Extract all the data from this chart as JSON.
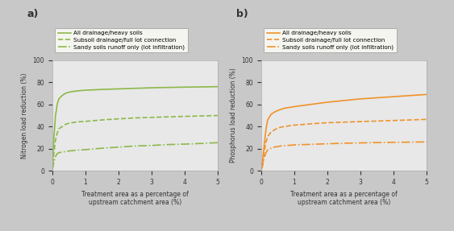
{
  "green_color": "#8db84a",
  "orange_color": "#f0922a",
  "background": "#c8c8c8",
  "panel_bg": "#e8e8e8",
  "xlabel": "Treatment area as a percentage of\nupstream catchment area (%)",
  "ylabel_a": "Nitrogen load reduction (%)",
  "ylabel_b": "Phosphorus load reduction (%)",
  "xlim": [
    0,
    5
  ],
  "ylim": [
    0,
    100
  ],
  "xticks": [
    0,
    1,
    2,
    3,
    4,
    5
  ],
  "yticks": [
    0,
    20,
    40,
    60,
    80,
    100
  ],
  "legend_labels": [
    "All drainage/heavy soils",
    "Subsoil drainage/full lot connection",
    "Sandy soils runoff only (lot infiltration)"
  ],
  "panel_labels": [
    "a)",
    "b)"
  ],
  "nitrogen": {
    "solid_x": [
      0,
      0.05,
      0.1,
      0.15,
      0.2,
      0.3,
      0.4,
      0.5,
      0.6,
      0.7,
      0.8,
      0.9,
      1.0,
      1.5,
      2.0,
      2.5,
      3.0,
      3.5,
      4.0,
      4.5,
      5.0
    ],
    "solid_y": [
      0,
      30,
      50,
      60,
      65,
      68,
      70,
      71,
      71.5,
      72,
      72.3,
      72.6,
      72.8,
      73.5,
      74.0,
      74.5,
      75.0,
      75.3,
      75.6,
      75.8,
      76.0
    ],
    "dashed_x": [
      0,
      0.05,
      0.1,
      0.15,
      0.2,
      0.3,
      0.4,
      0.5,
      0.6,
      0.7,
      0.8,
      0.9,
      1.0,
      1.5,
      2.0,
      2.5,
      3.0,
      3.5,
      4.0,
      4.5,
      5.0
    ],
    "dashed_y": [
      0,
      16,
      28,
      34,
      38,
      40,
      42,
      43,
      43.5,
      44,
      44.3,
      44.5,
      44.7,
      46,
      47,
      47.8,
      48.3,
      48.8,
      49.2,
      49.6,
      50.0
    ],
    "dashdot_x": [
      0,
      0.05,
      0.1,
      0.15,
      0.2,
      0.3,
      0.4,
      0.5,
      0.6,
      0.7,
      0.8,
      0.9,
      1.0,
      1.5,
      2.0,
      2.5,
      3.0,
      3.5,
      4.0,
      4.5,
      5.0
    ],
    "dashdot_y": [
      0,
      8,
      13,
      15.5,
      16.5,
      17,
      17.5,
      18,
      18.3,
      18.6,
      18.8,
      19.0,
      19.2,
      20.5,
      21.5,
      22.5,
      23.0,
      23.8,
      24.2,
      24.8,
      25.5
    ]
  },
  "phosphorus": {
    "solid_x": [
      0,
      0.05,
      0.1,
      0.15,
      0.2,
      0.3,
      0.4,
      0.5,
      0.6,
      0.7,
      0.8,
      0.9,
      1.0,
      1.5,
      2.0,
      2.5,
      3.0,
      3.5,
      4.0,
      4.5,
      5.0
    ],
    "solid_y": [
      0,
      10,
      25,
      38,
      46,
      51,
      53,
      54.5,
      55.5,
      56.5,
      57,
      57.5,
      58,
      60,
      62,
      63.5,
      65,
      66,
      67,
      68,
      69
    ],
    "dashed_x": [
      0,
      0.05,
      0.1,
      0.15,
      0.2,
      0.3,
      0.4,
      0.5,
      0.6,
      0.7,
      0.8,
      0.9,
      1.0,
      1.5,
      2.0,
      2.5,
      3.0,
      3.5,
      4.0,
      4.5,
      5.0
    ],
    "dashed_y": [
      0,
      8,
      18,
      26,
      31,
      35,
      37,
      38.5,
      39.5,
      40,
      40.5,
      41,
      41.3,
      42.5,
      43.5,
      44,
      44.5,
      45,
      45.5,
      46,
      46.5
    ],
    "dashdot_x": [
      0,
      0.05,
      0.1,
      0.15,
      0.2,
      0.3,
      0.4,
      0.5,
      0.6,
      0.7,
      0.8,
      0.9,
      1.0,
      1.5,
      2.0,
      2.5,
      3.0,
      3.5,
      4.0,
      4.5,
      5.0
    ],
    "dashdot_y": [
      0,
      5,
      12,
      16.5,
      19,
      20.5,
      21.5,
      22,
      22.5,
      22.8,
      23,
      23.2,
      23.5,
      24,
      24.5,
      25,
      25.3,
      25.6,
      25.8,
      26.0,
      26.2
    ]
  }
}
